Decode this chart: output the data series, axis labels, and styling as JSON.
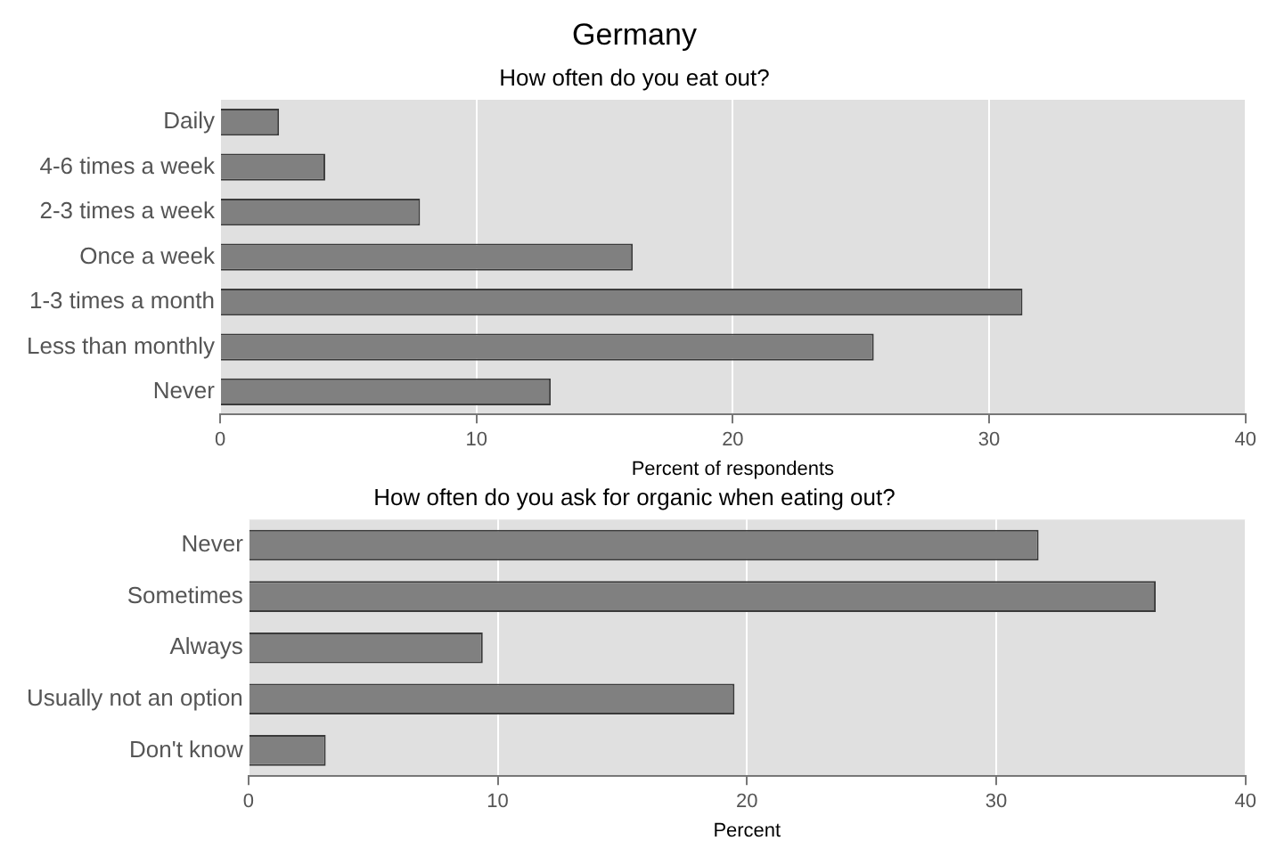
{
  "chart_data": [
    {
      "type": "bar",
      "orientation": "horizontal",
      "title": "Germany",
      "subtitle": "How often do you eat out?",
      "xlabel": "Percent of respondents",
      "categories": [
        "Daily",
        "4-6 times a week",
        "2-3 times a week",
        "Once a week",
        "1-3 times a month",
        "Less than monthly",
        "Never"
      ],
      "values": [
        2.3,
        4.1,
        7.8,
        16.1,
        31.3,
        25.5,
        12.9
      ],
      "color": "#808080",
      "xlim": [
        0,
        40
      ],
      "xticks": [
        0,
        10,
        20,
        30,
        40
      ],
      "grid": "x",
      "legend": false
    },
    {
      "type": "bar",
      "orientation": "horizontal",
      "title": "How often do you ask for organic when eating out?",
      "xlabel": "Percent",
      "categories": [
        "Never",
        "Sometimes",
        "Always",
        "Usually not an option",
        "Don't know"
      ],
      "values": [
        31.7,
        36.4,
        9.4,
        19.5,
        3.1
      ],
      "color": "#808080",
      "xlim": [
        0,
        40
      ],
      "xticks": [
        0,
        10,
        20,
        30,
        40
      ],
      "grid": "x",
      "legend": false
    }
  ]
}
